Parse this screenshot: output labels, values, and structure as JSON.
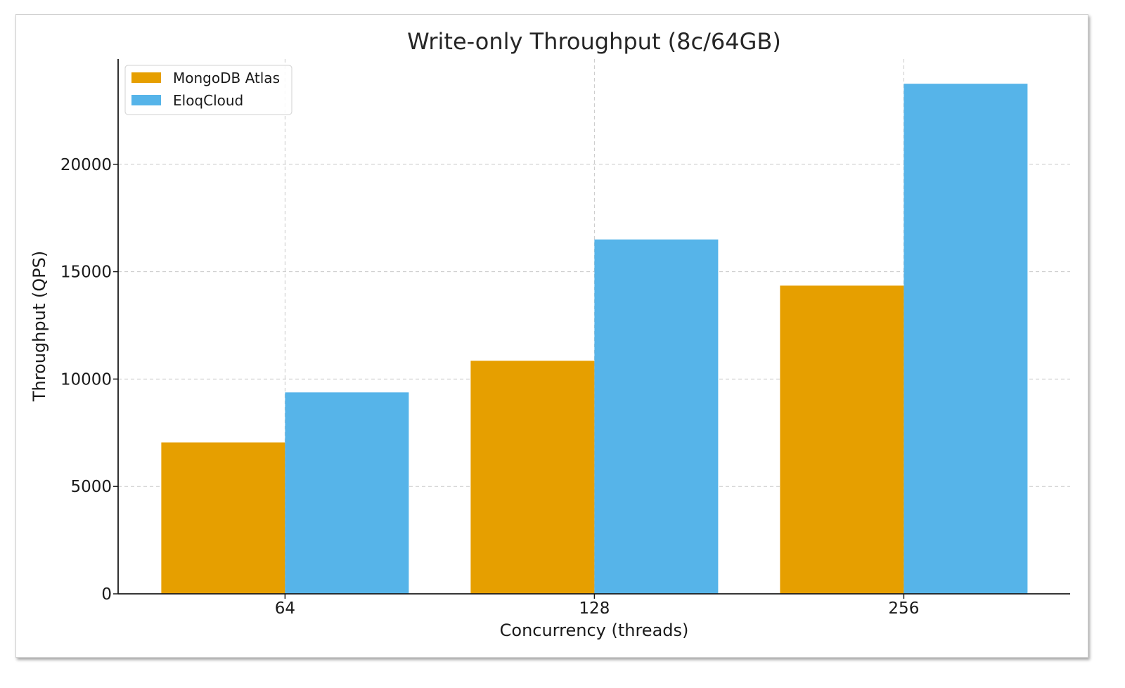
{
  "chart_data": {
    "type": "bar",
    "title": "Write-only Throughput (8c/64GB)",
    "xlabel": "Concurrency (threads)",
    "ylabel": "Throughput (QPS)",
    "categories": [
      "64",
      "128",
      "256"
    ],
    "series": [
      {
        "name": "MongoDB Atlas",
        "color": "#E69F00",
        "values": [
          7050,
          10850,
          14350
        ]
      },
      {
        "name": "EloqCloud",
        "color": "#56B4E9",
        "values": [
          9380,
          16500,
          23750
        ]
      }
    ],
    "ylim": [
      0,
      24900
    ],
    "yticks": [
      0,
      5000,
      10000,
      15000,
      20000
    ],
    "grid": true,
    "legend_position": "top-left"
  }
}
